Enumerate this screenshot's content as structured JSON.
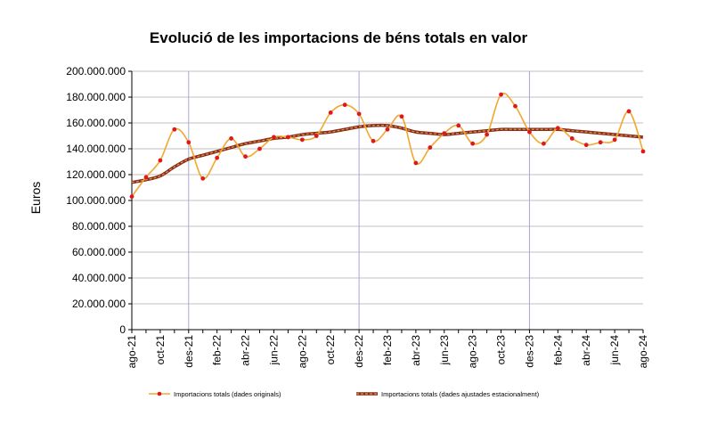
{
  "colors": {
    "original_line": "#f0a830",
    "original_marker": "#e0181c",
    "adjusted_line": "#8b2a1a",
    "adjusted_dash": "#d4a048",
    "grid": "#c0c0c0",
    "vline": "#a8a8d8"
  },
  "chart_data": {
    "type": "line",
    "title": "Evolució de les importacions de béns totals en valor",
    "ylabel": "Euros",
    "xlabel": "",
    "ylim": [
      0,
      200000000
    ],
    "grid": true,
    "legend_position": "bottom",
    "y_ticks": [
      "0",
      "20.000.000",
      "40.000.000",
      "60.000.000",
      "80.000.000",
      "100.000.000",
      "120.000.000",
      "140.000.000",
      "160.000.000",
      "180.000.000",
      "200.000.000"
    ],
    "x_ticks": [
      "ago-21",
      "oct-21",
      "des-21",
      "feb-22",
      "abr-22",
      "jun-22",
      "ago-22",
      "oct-22",
      "des-22",
      "feb-23",
      "abr-23",
      "jun-23",
      "ago-23",
      "oct-23",
      "des-23",
      "feb-24",
      "abr-24",
      "jun-24",
      "ago-24"
    ],
    "x": [
      "ago-21",
      "set-21",
      "oct-21",
      "nov-21",
      "des-21",
      "gen-22",
      "feb-22",
      "mar-22",
      "abr-22",
      "mai-22",
      "jun-22",
      "jul-22",
      "ago-22",
      "set-22",
      "oct-22",
      "nov-22",
      "des-22",
      "gen-23",
      "feb-23",
      "mar-23",
      "abr-23",
      "mai-23",
      "jun-23",
      "jul-23",
      "ago-23",
      "set-23",
      "oct-23",
      "nov-23",
      "des-23",
      "gen-24",
      "feb-24",
      "mar-24",
      "abr-24",
      "mai-24",
      "jun-24",
      "jul-24",
      "ago-24"
    ],
    "series": [
      {
        "name": "Importacions totals (dades originals)",
        "values": [
          103000000,
          118000000,
          131000000,
          155000000,
          145000000,
          117000000,
          133000000,
          148000000,
          134000000,
          140000000,
          149000000,
          149000000,
          147000000,
          150000000,
          168000000,
          174000000,
          167000000,
          146000000,
          155000000,
          165000000,
          129000000,
          141000000,
          152000000,
          158000000,
          144000000,
          151000000,
          182000000,
          173000000,
          153000000,
          144000000,
          156000000,
          148000000,
          143000000,
          145000000,
          147000000,
          169000000,
          138000000
        ]
      },
      {
        "name": "Importacions totals (dades ajustades estacionalment)",
        "values": [
          114000000,
          116000000,
          119000000,
          126000000,
          132000000,
          135000000,
          138000000,
          141000000,
          144000000,
          146000000,
          148000000,
          149000000,
          151000000,
          152000000,
          153000000,
          155000000,
          157000000,
          158000000,
          158000000,
          156000000,
          153000000,
          152000000,
          151000000,
          152000000,
          153000000,
          154000000,
          155000000,
          155000000,
          155000000,
          155000000,
          155000000,
          154000000,
          153000000,
          152000000,
          151000000,
          150000000,
          149000000
        ]
      }
    ]
  }
}
